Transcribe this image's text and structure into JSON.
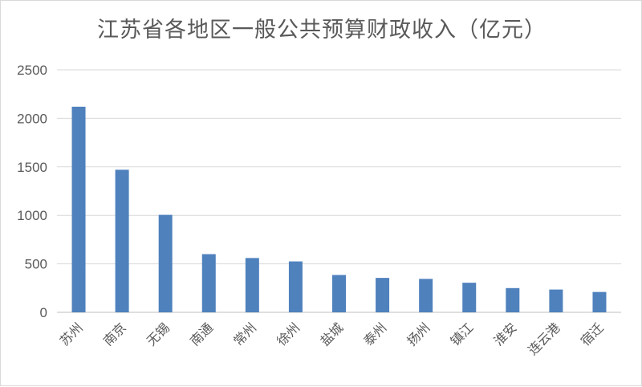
{
  "chart_data": {
    "type": "bar",
    "title": "江苏省各地区一般公共预算财政收入（亿元）",
    "xlabel": "",
    "ylabel": "",
    "categories": [
      "苏州",
      "南京",
      "无锡",
      "南通",
      "常州",
      "徐州",
      "盐城",
      "泰州",
      "扬州",
      "镇江",
      "淮安",
      "连云港",
      "宿迁"
    ],
    "values": [
      2120,
      1470,
      1005,
      600,
      560,
      525,
      385,
      355,
      345,
      305,
      250,
      235,
      210
    ],
    "ylim": [
      0,
      2500
    ],
    "yticks": [
      "0",
      "500",
      "1000",
      "1500",
      "2000",
      "2500"
    ],
    "grid": true,
    "legend": "none",
    "colors": {
      "bar": "#4f81bd",
      "grid": "#d9d9d9",
      "text": "#595959"
    }
  }
}
